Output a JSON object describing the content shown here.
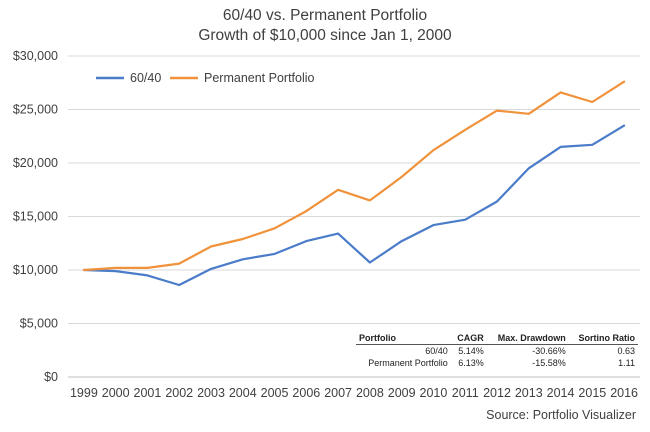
{
  "chart_data": {
    "type": "line",
    "title": "60/40 vs. Permanent Portfolio",
    "subtitle": "Growth of $10,000 since Jan 1, 2000",
    "x": [
      "1999",
      "2000",
      "2001",
      "2002",
      "2003",
      "2004",
      "2005",
      "2006",
      "2007",
      "2008",
      "2009",
      "2010",
      "2011",
      "2012",
      "2013",
      "2014",
      "2015",
      "2016"
    ],
    "ylim": [
      0,
      30000
    ],
    "yticks": [
      0,
      5000,
      10000,
      15000,
      20000,
      25000,
      30000
    ],
    "ytick_labels": [
      "$0",
      "$5,000",
      "$10,000",
      "$15,000",
      "$20,000",
      "$25,000",
      "$30,000"
    ],
    "grid": true,
    "legend_position": "top-left",
    "series": [
      {
        "name": "60/40",
        "color": "#4a7cc9",
        "values": [
          10000,
          9900,
          9500,
          8600,
          10100,
          11000,
          11500,
          12700,
          13400,
          10700,
          12700,
          14200,
          14700,
          16400,
          19500,
          21500,
          21700,
          23500
        ]
      },
      {
        "name": "Permanent Portfolio",
        "color": "#f0923b",
        "values": [
          10000,
          10200,
          10200,
          10600,
          12200,
          12900,
          13900,
          15500,
          17500,
          16500,
          18700,
          21200,
          23100,
          24900,
          24600,
          26600,
          25700,
          27600
        ]
      }
    ]
  },
  "stats_table": {
    "headers": [
      "Portfolio",
      "CAGR",
      "Max. Drawdown",
      "Sortino Ratio"
    ],
    "rows": [
      [
        "60/40",
        "5.14%",
        "-30.66%",
        "0.63"
      ],
      [
        "Permanent Portfolio",
        "6.13%",
        "-15.58%",
        "1.11"
      ]
    ]
  },
  "source_note": "Source: Portfolio Visualizer"
}
